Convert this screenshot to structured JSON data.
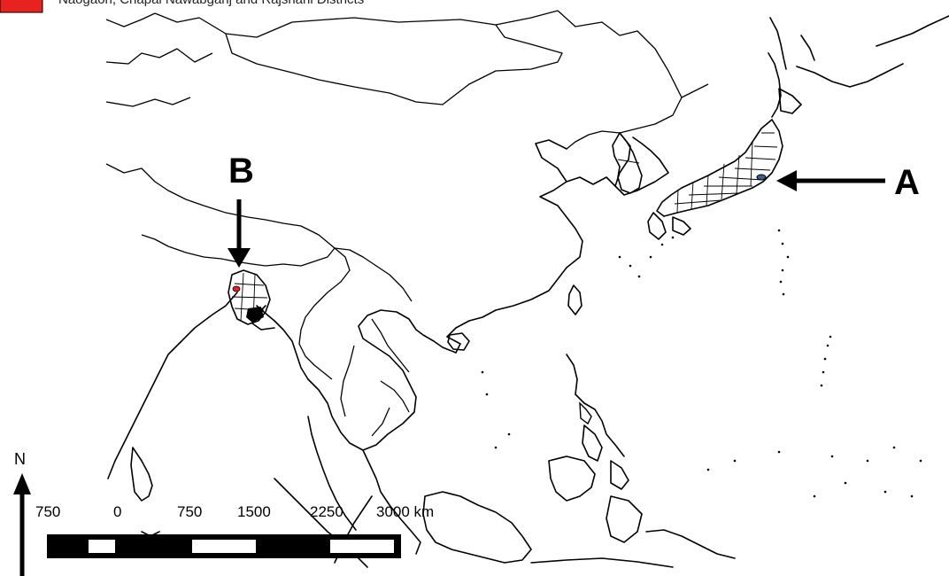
{
  "legend": {
    "label": "Naogaon, Chapai Nawabganj and Rajshahi Districts",
    "swatch_color": "#e8231f"
  },
  "markers": [
    {
      "id": "A",
      "label": "A",
      "location": "Japan study area",
      "highlight_color": "#3a5f8a"
    },
    {
      "id": "B",
      "label": "B",
      "location": "Bangladesh study area",
      "highlight_color": "#e8231f"
    }
  ],
  "north_arrow": {
    "label": "N"
  },
  "scale_bar": {
    "tick_labels": [
      "750",
      "0",
      "750",
      "1500",
      "2250",
      "3000 km"
    ]
  }
}
